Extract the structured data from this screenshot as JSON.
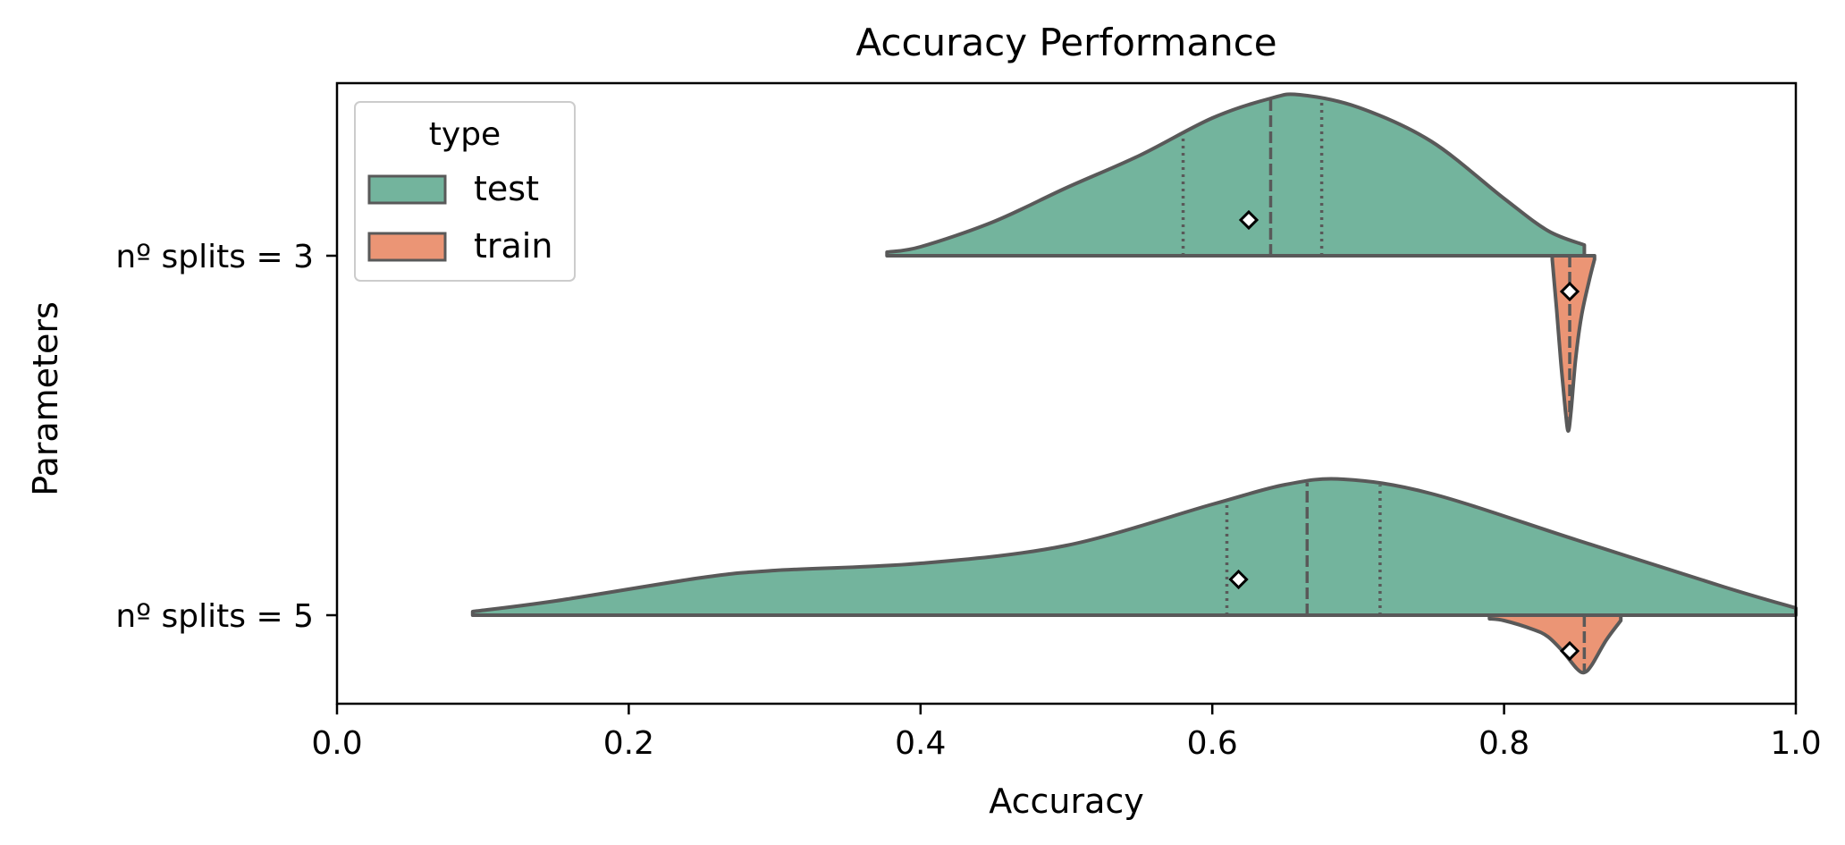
{
  "chart_data": {
    "type": "violin",
    "orientation": "horizontal",
    "split": true,
    "title": "Accuracy Performance",
    "xlabel": "Accuracy",
    "ylabel": "Parameters",
    "xlim": [
      0.0,
      1.0
    ],
    "x_ticks": [
      0.0,
      0.2,
      0.4,
      0.6,
      0.8,
      1.0
    ],
    "x_tick_labels": [
      "0.0",
      "0.2",
      "0.4",
      "0.6",
      "0.8",
      "1.0"
    ],
    "categories": [
      "nº splits = 3",
      "nº splits = 5"
    ],
    "grid": false,
    "legend": {
      "title": "type",
      "position": "top-left",
      "entries": [
        {
          "label": "test",
          "color": "#73b49d"
        },
        {
          "label": "train",
          "color": "#eb9575"
        }
      ]
    },
    "colors": {
      "test": "#73b49d",
      "train": "#eb9575",
      "edge": "#595959",
      "text": "#000000"
    },
    "series": [
      {
        "name": "test",
        "side": "upper",
        "groups": [
          {
            "category": "nº splits = 3",
            "min": 0.377,
            "max": 0.855,
            "q1": 0.58,
            "median": 0.64,
            "q3": 0.675,
            "mean": 0.625,
            "density": [
              [
                0.377,
                0.02
              ],
              [
                0.4,
                0.05
              ],
              [
                0.45,
                0.19
              ],
              [
                0.5,
                0.38
              ],
              [
                0.55,
                0.56
              ],
              [
                0.6,
                0.77
              ],
              [
                0.64,
                0.88
              ],
              [
                0.66,
                0.9
              ],
              [
                0.7,
                0.83
              ],
              [
                0.75,
                0.64
              ],
              [
                0.8,
                0.32
              ],
              [
                0.83,
                0.14
              ],
              [
                0.855,
                0.06
              ]
            ]
          },
          {
            "category": "nº splits = 5",
            "min": 0.093,
            "max": 1.0,
            "q1": 0.61,
            "median": 0.665,
            "q3": 0.715,
            "mean": 0.618,
            "density": [
              [
                0.093,
                0.02
              ],
              [
                0.15,
                0.08
              ],
              [
                0.25,
                0.21
              ],
              [
                0.3,
                0.25
              ],
              [
                0.4,
                0.29
              ],
              [
                0.5,
                0.39
              ],
              [
                0.6,
                0.62
              ],
              [
                0.65,
                0.73
              ],
              [
                0.69,
                0.76
              ],
              [
                0.75,
                0.68
              ],
              [
                0.85,
                0.42
              ],
              [
                0.95,
                0.16
              ],
              [
                1.0,
                0.04
              ]
            ]
          }
        ]
      },
      {
        "name": "train",
        "side": "lower",
        "groups": [
          {
            "category": "nº splits = 3",
            "min": 0.833,
            "max": 0.862,
            "median": 0.845,
            "mean": 0.845,
            "density": [
              [
                0.833,
                0.02
              ],
              [
                0.836,
                0.3
              ],
              [
                0.839,
                0.6
              ],
              [
                0.842,
                0.86
              ],
              [
                0.844,
                0.98
              ],
              [
                0.846,
                0.86
              ],
              [
                0.849,
                0.58
              ],
              [
                0.853,
                0.34
              ],
              [
                0.858,
                0.15
              ],
              [
                0.862,
                0.02
              ]
            ]
          },
          {
            "category": "nº splits = 5",
            "min": 0.79,
            "max": 0.88,
            "median": 0.855,
            "mean": 0.845,
            "density": [
              [
                0.79,
                0.02
              ],
              [
                0.8,
                0.03
              ],
              [
                0.82,
                0.08
              ],
              [
                0.83,
                0.12
              ],
              [
                0.84,
                0.2
              ],
              [
                0.85,
                0.3
              ],
              [
                0.855,
                0.32
              ],
              [
                0.86,
                0.28
              ],
              [
                0.87,
                0.14
              ],
              [
                0.88,
                0.03
              ]
            ]
          }
        ]
      }
    ]
  }
}
